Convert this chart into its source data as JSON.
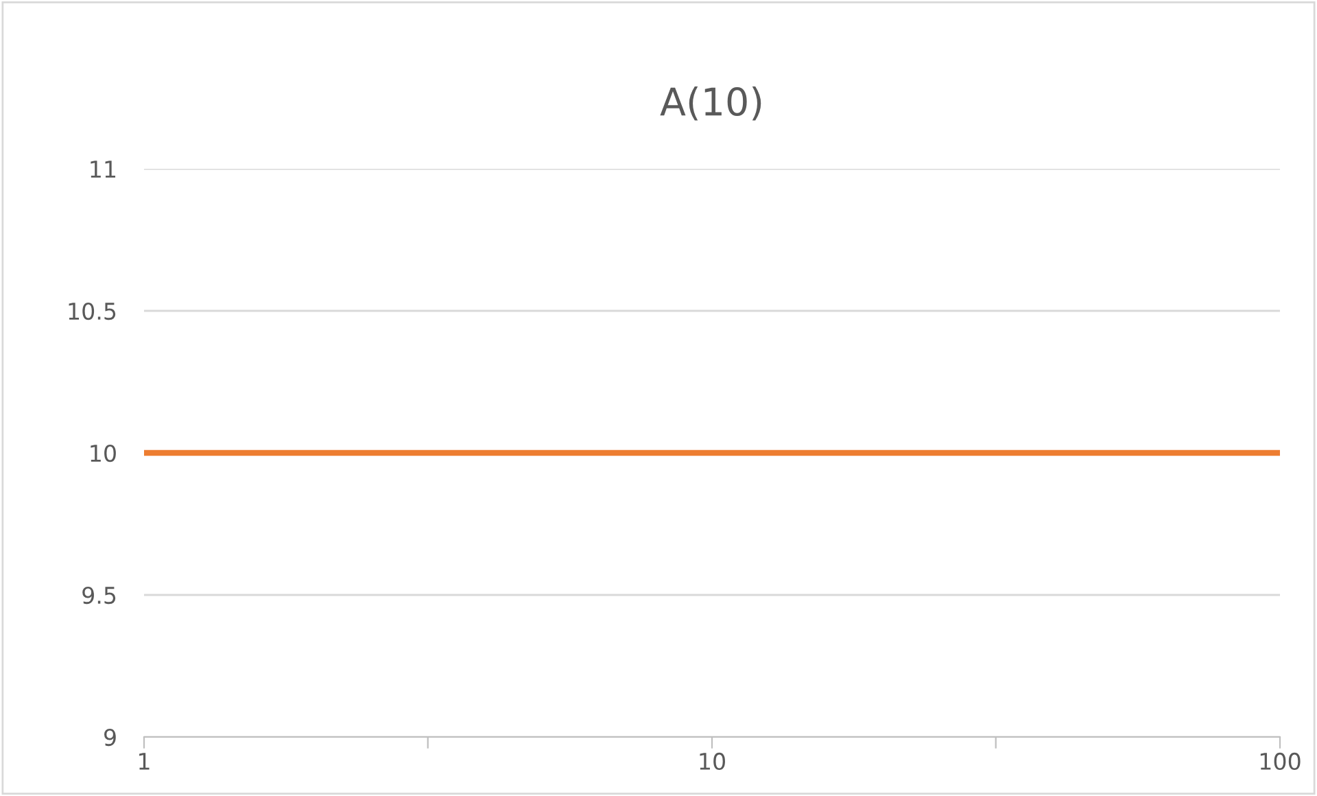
{
  "chart_data": {
    "type": "line",
    "title": "A(10)",
    "x": [
      1,
      100
    ],
    "series": [
      {
        "color": "#ed7d31",
        "values": [
          10,
          10
        ]
      }
    ],
    "log": "x",
    "xlim": [
      1,
      100
    ],
    "xticks": [
      1,
      {
        "value": 3.16,
        "label": null
      },
      10,
      {
        "value": 31.6,
        "label": null
      },
      100
    ],
    "ylim": [
      9,
      11
    ],
    "yticks": [
      9,
      9.5,
      10,
      10.5,
      11
    ],
    "grid": "y",
    "marker": "none",
    "line_style": "solid",
    "legend": false
  }
}
